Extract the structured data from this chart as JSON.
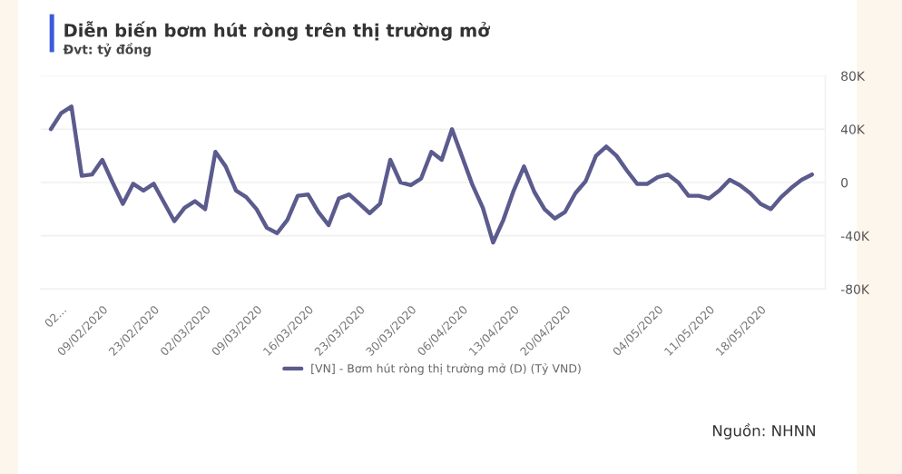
{
  "chart_data": {
    "type": "line",
    "title": "Diễn biến bơm hút ròng trên thị trường mở",
    "subtitle": "Đvt: tỷ đồng",
    "annotations": [
      "Nguồn: NHNN"
    ],
    "categories": [
      null,
      "02...",
      null,
      null,
      null,
      "09/02/2020",
      null,
      null,
      null,
      null,
      "23/02/2020",
      null,
      null,
      null,
      null,
      "02/03/2020",
      null,
      null,
      null,
      null,
      "09/03/2020",
      null,
      null,
      null,
      null,
      "16/03/2020",
      null,
      null,
      null,
      null,
      "23/03/2020",
      null,
      null,
      null,
      null,
      "30/03/2020",
      null,
      null,
      null,
      null,
      "06/04/2020",
      null,
      null,
      null,
      null,
      "13/04/2020",
      null,
      null,
      null,
      null,
      "20/04/2020",
      null,
      null,
      null,
      null,
      null,
      null,
      null,
      null,
      "04/05/2020",
      null,
      null,
      null,
      null,
      "11/05/2020",
      null,
      null,
      null,
      null,
      "18/05/2020",
      null,
      null,
      null,
      null,
      null
    ],
    "series": [
      {
        "name": "[VN] - Bơm hút ròng thị trường mở (D) (Tỷ VND)",
        "color": "#5b5b8e",
        "values": [
          40,
          52,
          57,
          5,
          6,
          17,
          0,
          -16,
          -1,
          -6,
          -1,
          -15,
          -29,
          -19,
          -14,
          -20,
          23,
          12,
          -6,
          -11,
          -20,
          -34,
          -38,
          -28,
          -10,
          -9,
          -22,
          -32,
          -12,
          -9,
          -16,
          -23,
          -16,
          17,
          0,
          -2,
          3,
          23,
          17,
          40,
          19,
          -2,
          -19,
          -45,
          -28,
          -6,
          12,
          -7,
          -20,
          -27,
          -22,
          -8,
          1,
          20,
          27,
          20,
          9,
          -1,
          -1,
          4,
          6,
          0,
          -10,
          -10,
          -12,
          -6,
          2,
          -2,
          -8,
          -16,
          -20,
          -11,
          -4,
          2,
          6
        ]
      }
    ],
    "ylim": [
      -80,
      80
    ],
    "yticks": [
      {
        "value": 80,
        "label": "80K"
      },
      {
        "value": 40,
        "label": "40K"
      },
      {
        "value": 0,
        "label": "0"
      },
      {
        "value": -40,
        "label": "-40K"
      },
      {
        "value": -80,
        "label": "-80K"
      }
    ],
    "grid": "y",
    "legend": "bottom",
    "line_style": "solid",
    "marker": "none"
  }
}
